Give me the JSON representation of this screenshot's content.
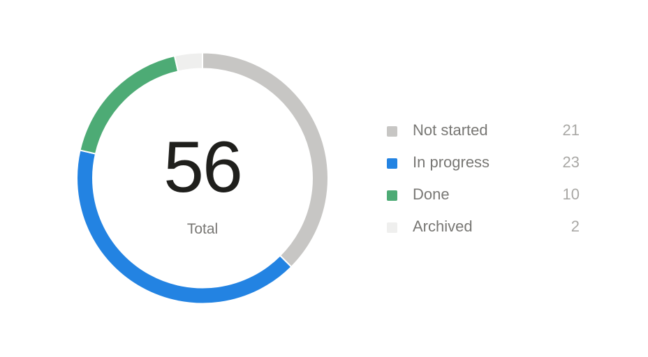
{
  "chart_data": {
    "type": "pie",
    "variant": "donut",
    "center_value": "56",
    "center_label": "Total",
    "legend_placement": "right",
    "series": [
      {
        "name": "Not started",
        "value": 21,
        "color": "#c7c6c4"
      },
      {
        "name": "In progress",
        "value": 23,
        "color": "#2383e2"
      },
      {
        "name": "Done",
        "value": 10,
        "color": "#4dab75"
      },
      {
        "name": "Archived",
        "value": 2,
        "color": "#efefee"
      }
    ]
  }
}
